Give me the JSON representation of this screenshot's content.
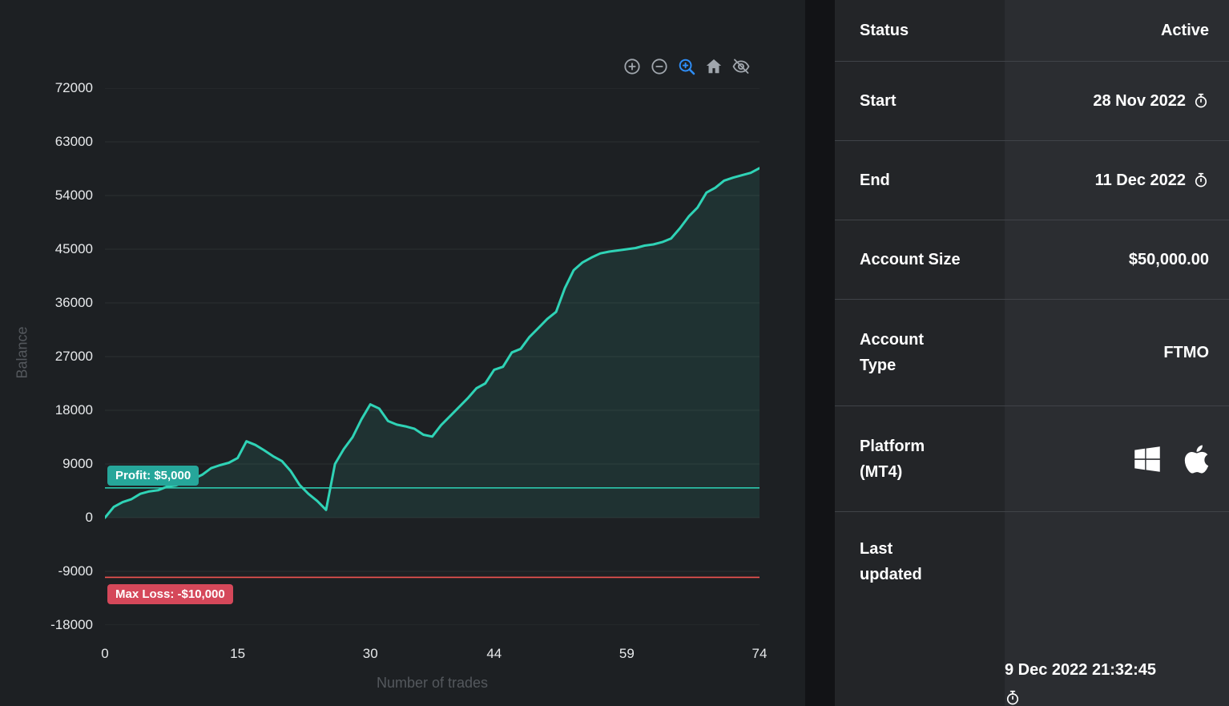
{
  "chart_toolbar": {
    "icons": [
      "zoom-in",
      "zoom-out",
      "box-zoom",
      "reset-home",
      "toggle-spikelines"
    ],
    "active_icon": "box-zoom",
    "icon_color": "#a0a6ad",
    "active_color": "#2e8df6"
  },
  "chart_data": {
    "type": "line",
    "title": "",
    "xlabel": "Number of trades",
    "ylabel": "Balance",
    "xlim": [
      0,
      74
    ],
    "ylim": [
      -18000,
      72000
    ],
    "xticks": [
      0,
      15,
      30,
      44,
      59,
      74
    ],
    "yticks": [
      72000,
      63000,
      54000,
      45000,
      36000,
      27000,
      18000,
      9000,
      0,
      -9000,
      -18000
    ],
    "grid": "horizontal",
    "legend": "none",
    "line_color": "#2fd3b6",
    "fill_color": "rgba(47,211,182,0.10)",
    "series": [
      {
        "name": "Balance",
        "x": [
          0,
          1,
          2,
          3,
          4,
          5,
          6,
          7,
          8,
          9,
          10,
          11,
          12,
          13,
          14,
          15,
          16,
          17,
          18,
          19,
          20,
          21,
          22,
          23,
          24,
          25,
          26,
          27,
          28,
          29,
          30,
          31,
          32,
          33,
          34,
          35,
          36,
          37,
          38,
          39,
          40,
          41,
          42,
          43,
          44,
          45,
          46,
          47,
          48,
          49,
          50,
          51,
          52,
          53,
          54,
          55,
          56,
          57,
          58,
          59,
          60,
          61,
          62,
          63,
          64,
          65,
          66,
          67,
          68,
          69,
          70,
          71,
          72,
          73,
          74
        ],
        "values": [
          0,
          1800,
          2600,
          3100,
          4000,
          4400,
          4600,
          5200,
          5400,
          6000,
          6500,
          7200,
          8300,
          8800,
          9200,
          10000,
          12800,
          12200,
          11300,
          10300,
          9500,
          7800,
          5500,
          4000,
          2800,
          1300,
          9000,
          11500,
          13500,
          16500,
          19000,
          18300,
          16200,
          15600,
          15300,
          14900,
          13900,
          13600,
          15500,
          17000,
          18500,
          20000,
          21700,
          22500,
          24800,
          25300,
          27700,
          28300,
          30300,
          31800,
          33300,
          34500,
          38500,
          41500,
          42800,
          43600,
          44300,
          44600,
          44800,
          45000,
          45200,
          45600,
          45800,
          46200,
          46800,
          48500,
          50500,
          52000,
          54500,
          55300,
          56500,
          57000,
          57400,
          57800,
          58600
        ]
      }
    ],
    "reference_lines": [
      {
        "name": "profit-target",
        "label": "Profit: $5,000",
        "value": 5000,
        "line_color": "#2cc7ad",
        "badge_color": "#26a69a"
      },
      {
        "name": "max-loss",
        "label": "Max Loss: -$10,000",
        "value": -10000,
        "line_color": "#ef5350",
        "badge_color": "#d5485a"
      }
    ]
  },
  "details": {
    "rows": [
      {
        "label": "Status",
        "value": "Active"
      },
      {
        "label": "Start",
        "value": "28 Nov 2022",
        "icon": "stopwatch"
      },
      {
        "label": "End",
        "value": "11 Dec 2022",
        "icon": "stopwatch"
      },
      {
        "label": "Account Size",
        "value": "$50,000.00"
      },
      {
        "label": "Account Type",
        "value": "FTMO"
      },
      {
        "label": "Platform (MT4)",
        "value_icons": [
          "windows",
          "apple"
        ]
      },
      {
        "label": "Last updated",
        "value": "9 Dec 2022 21:32:45",
        "icon": "stopwatch"
      }
    ]
  }
}
